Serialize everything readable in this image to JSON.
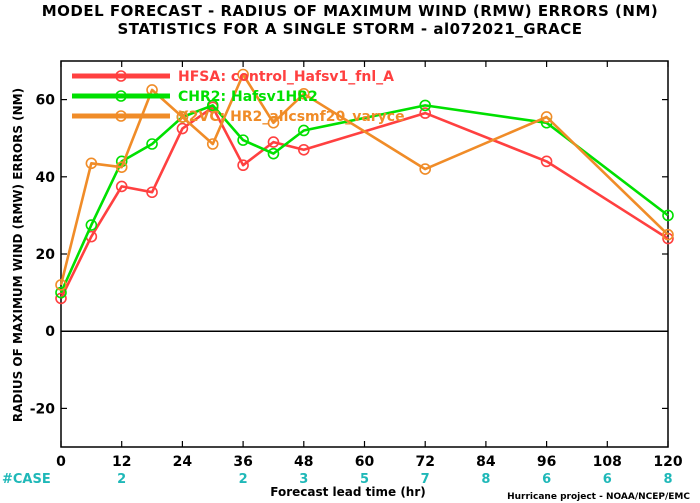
{
  "header": {
    "title_line1": "MODEL FORECAST - RADIUS OF MAXIMUM WIND (RMW) ERRORS (NM)",
    "title_line2": "STATISTICS FOR A SINGLE STORM - al072021_GRACE"
  },
  "footer": {
    "credit": "Hurricane project - NOAA/NCEP/EMC",
    "case_label": "#CASE"
  },
  "chart_data": {
    "type": "line",
    "xlabel": "Forecast lead time (hr)",
    "ylabel": "RADIUS OF MAXIMUM WIND (RMW) ERRORS (NM)",
    "xlim": [
      0,
      120
    ],
    "ylim": [
      -30,
      70
    ],
    "xticks": [
      0,
      12,
      24,
      36,
      48,
      60,
      72,
      84,
      96,
      108,
      120
    ],
    "yticks": [
      -20,
      0,
      20,
      40,
      60
    ],
    "case_counts": [
      {
        "x": 12,
        "label": "2"
      },
      {
        "x": 36,
        "label": "2"
      },
      {
        "x": 48,
        "label": "3"
      },
      {
        "x": 60,
        "label": "5"
      },
      {
        "x": 72,
        "label": "7"
      },
      {
        "x": 84,
        "label": "8"
      },
      {
        "x": 96,
        "label": "6"
      },
      {
        "x": 108,
        "label": "6"
      },
      {
        "x": 120,
        "label": "8"
      }
    ],
    "legend_position": "top-left",
    "series": [
      {
        "name": "HFSA: control_Hafsv1_fnl_A",
        "color": "#ff4040",
        "points": [
          [
            0,
            8.5
          ],
          [
            6,
            24.5
          ],
          [
            12,
            37.5
          ],
          [
            18,
            36
          ],
          [
            24,
            52.5
          ],
          [
            30,
            58
          ],
          [
            36,
            43
          ],
          [
            42,
            49
          ],
          [
            48,
            47
          ],
          [
            72,
            56.5
          ],
          [
            96,
            44
          ],
          [
            120,
            24
          ]
        ]
      },
      {
        "name": "CHR2: Hafsv1HR2",
        "color": "#00e000",
        "points": [
          [
            0,
            10
          ],
          [
            6,
            27.5
          ],
          [
            12,
            44
          ],
          [
            18,
            48.5
          ],
          [
            24,
            55.5
          ],
          [
            30,
            58.5
          ],
          [
            36,
            49.5
          ],
          [
            42,
            46
          ],
          [
            48,
            52
          ],
          [
            72,
            58.5
          ],
          [
            96,
            54
          ],
          [
            120,
            30
          ]
        ]
      },
      {
        "name": "X2VC: HR2_allcsmf20_varyce",
        "color": "#f08c28",
        "points": [
          [
            0,
            12
          ],
          [
            6,
            43.5
          ],
          [
            12,
            42.5
          ],
          [
            18,
            62.5
          ],
          [
            24,
            55.5
          ],
          [
            30,
            48.5
          ],
          [
            36,
            66.5
          ],
          [
            42,
            54
          ],
          [
            48,
            61.5
          ],
          [
            72,
            42
          ],
          [
            96,
            55.5
          ],
          [
            120,
            25
          ]
        ]
      }
    ]
  }
}
